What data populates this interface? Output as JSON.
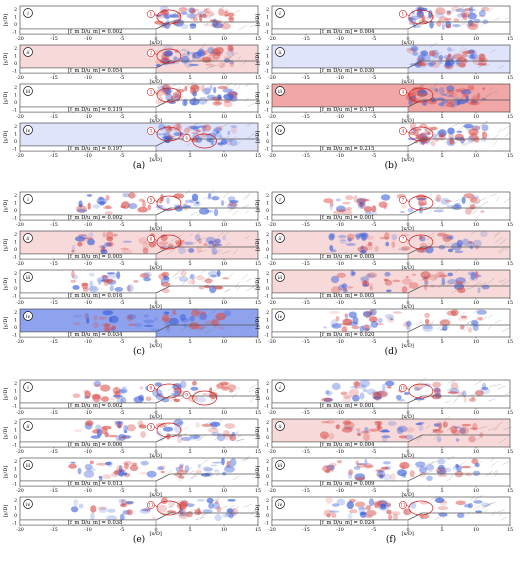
{
  "figure": {
    "x_axis": {
      "label": "[x/D]",
      "ticks": [
        "-20",
        "-15",
        "-10",
        "-5",
        "0",
        "5",
        "10",
        "15"
      ]
    },
    "y_axis": {
      "label": "[y/D]",
      "ticks": [
        "2",
        "1",
        "0",
        "-1"
      ]
    },
    "colors": {
      "positive": "#d9534f",
      "negative": "#3b5fd9",
      "annotation": "#cc2222",
      "wall": "#555555"
    },
    "panels": [
      {
        "id": "a",
        "caption": "(a)",
        "rows": [
          {
            "roman": "i",
            "freq": "[f_m D/u_m] = 0.002",
            "tint": "none",
            "markers": [
              "1"
            ]
          },
          {
            "roman": "ii",
            "freq": "[f_m D/u_m] = 0.054",
            "tint": "red",
            "markers": [
              "2"
            ]
          },
          {
            "roman": "iii",
            "freq": "[f_m D/u_m] = 0.119",
            "tint": "none",
            "markers": [
              "2"
            ]
          },
          {
            "roman": "iv",
            "freq": "[f_m D/u_m] = 0.197",
            "tint": "blue",
            "markers": [
              "3",
              "4"
            ]
          }
        ]
      },
      {
        "id": "b",
        "caption": "(b)",
        "rows": [
          {
            "roman": "i",
            "freq": "[f_m D/u_m] = 0.004",
            "tint": "none",
            "markers": [
              "1"
            ]
          },
          {
            "roman": "ii",
            "freq": "[f_m D/u_m] = 0.030",
            "tint": "blue",
            "markers": []
          },
          {
            "roman": "iii",
            "freq": "[f_m D/u_m] = 0.173",
            "tint": "red-strong",
            "markers": [
              "4"
            ]
          },
          {
            "roman": "iv",
            "freq": "[f_m D/u_m] = 0.215",
            "tint": "none",
            "markers": [
              "4"
            ]
          }
        ]
      },
      {
        "id": "c",
        "caption": "(c)",
        "rows": [
          {
            "roman": "i",
            "freq": "[f_m D/u_m] = 0.002",
            "tint": "none",
            "markers": [
              "5"
            ]
          },
          {
            "roman": "ii",
            "freq": "[f_m D/u_m] = 0.005",
            "tint": "red",
            "markers": [
              "6"
            ]
          },
          {
            "roman": "iii",
            "freq": "[f_m D/u_m] = 0.016",
            "tint": "none",
            "markers": []
          },
          {
            "roman": "iv",
            "freq": "[f_m D/u_m] = 0.034",
            "tint": "blue-strong",
            "markers": []
          }
        ]
      },
      {
        "id": "d",
        "caption": "(d)",
        "rows": [
          {
            "roman": "i",
            "freq": "[f_m D/u_m] = 0.001",
            "tint": "none",
            "markers": [
              "7"
            ]
          },
          {
            "roman": "ii",
            "freq": "[f_m D/u_m] = 0.005",
            "tint": "red",
            "markers": [
              "7"
            ]
          },
          {
            "roman": "iii",
            "freq": "[f_m D/u_m] = 0.005",
            "tint": "red",
            "markers": []
          },
          {
            "roman": "iv",
            "freq": "[f_m D/u_m] = 0.020",
            "tint": "none",
            "markers": []
          }
        ]
      },
      {
        "id": "e",
        "caption": "(e)",
        "rows": [
          {
            "roman": "i",
            "freq": "[f_m D/u_m] = 0.002",
            "tint": "none",
            "markers": [
              "8",
              "9"
            ]
          },
          {
            "roman": "ii",
            "freq": "[f_m D/u_m] = 0.006",
            "tint": "none",
            "markers": [
              "9"
            ]
          },
          {
            "roman": "iii",
            "freq": "[f_m D/u_m] = 0.013",
            "tint": "none",
            "markers": []
          },
          {
            "roman": "iv",
            "freq": "[f_m D/u_m] = 0.038",
            "tint": "none",
            "markers": [
              "11"
            ]
          }
        ]
      },
      {
        "id": "f",
        "caption": "(f)",
        "rows": [
          {
            "roman": "i",
            "freq": "[f_m D/u_m] = 0.001",
            "tint": "none",
            "markers": [
              "10"
            ]
          },
          {
            "roman": "ii",
            "freq": "[f_m D/u_m] = 0.004",
            "tint": "red",
            "markers": []
          },
          {
            "roman": "iii",
            "freq": "[f_m D/u_m] = 0.009",
            "tint": "none",
            "markers": []
          },
          {
            "roman": "iv",
            "freq": "[f_m D/u_m] = 0.024",
            "tint": "none",
            "markers": [
              "11"
            ]
          }
        ]
      }
    ]
  }
}
